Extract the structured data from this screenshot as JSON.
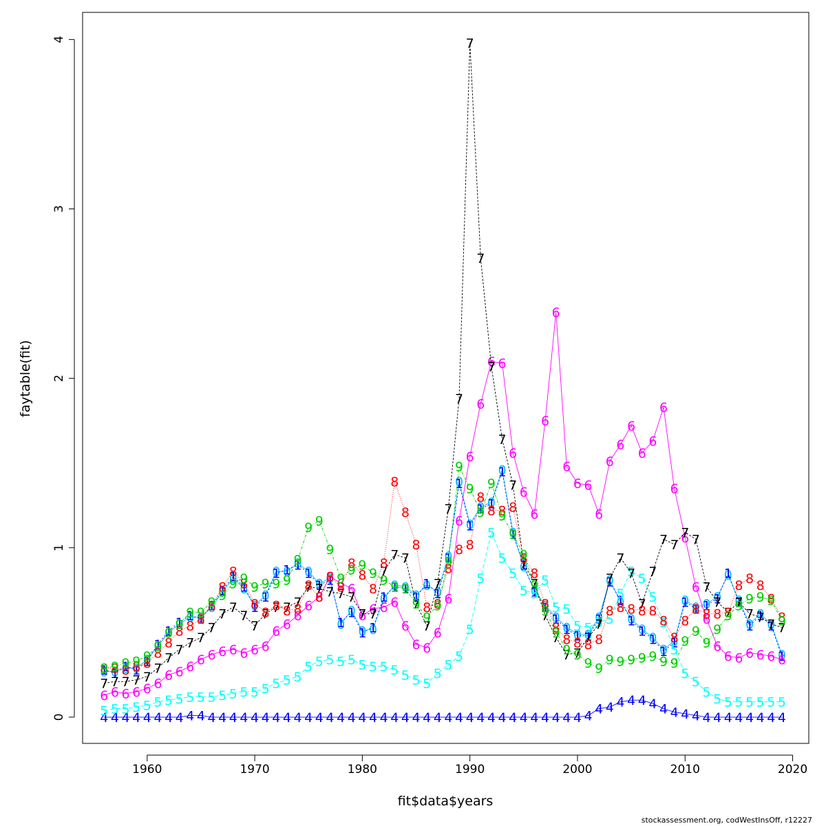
{
  "footer": "stockassessment.org, codWestInsOff, r12227",
  "chart_data": {
    "type": "line",
    "xlabel": "fit$data$years",
    "ylabel": "faytable(fit)",
    "xlim": [
      1954.0,
      2021.5
    ],
    "ylim": [
      -0.155,
      4.16
    ],
    "x_ticks": [
      1960,
      1970,
      1980,
      1990,
      2000,
      2010,
      2020
    ],
    "y_ticks": [
      0,
      1,
      2,
      3,
      4
    ],
    "x_tick_labels": [
      "1960",
      "1970",
      "1980",
      "1990",
      "2000",
      "2010",
      "2020"
    ],
    "y_tick_labels": [
      "0",
      "1",
      "2",
      "3",
      "4"
    ],
    "years": [
      1956,
      1957,
      1958,
      1959,
      1960,
      1961,
      1962,
      1963,
      1964,
      1965,
      1966,
      1967,
      1968,
      1969,
      1970,
      1971,
      1972,
      1973,
      1974,
      1975,
      1976,
      1977,
      1978,
      1979,
      1980,
      1981,
      1982,
      1983,
      1984,
      1985,
      1986,
      1987,
      1988,
      1989,
      1990,
      1991,
      1992,
      1993,
      1994,
      1995,
      1996,
      1997,
      1998,
      1999,
      2000,
      2001,
      2002,
      2003,
      2004,
      2005,
      2006,
      2007,
      2008,
      2009,
      2010,
      2011,
      2012,
      2013,
      2014,
      2015,
      2016,
      2017,
      2018,
      2019
    ],
    "series": [
      {
        "label": "0",
        "color": "#00bfff",
        "values": [
          0.27,
          0.27,
          0.29,
          0.29,
          0.34,
          0.42,
          0.5,
          0.55,
          0.59,
          0.59,
          0.65,
          0.74,
          0.82,
          0.76,
          0.66,
          0.72,
          0.86,
          0.86,
          0.91,
          0.86,
          0.79,
          0.82,
          0.55,
          0.63,
          0.51,
          0.52,
          0.7,
          0.78,
          0.77,
          0.72,
          0.78,
          0.74,
          0.95,
          1.39,
          1.14,
          1.24,
          1.27,
          1.46,
          1.09,
          0.89,
          0.75,
          0.66,
          0.59,
          0.53,
          0.49,
          0.49,
          0.59,
          0.81,
          0.68,
          0.58,
          0.52,
          0.47,
          0.4,
          0.45,
          0.69,
          0.65,
          0.67,
          0.71,
          0.84,
          0.69,
          0.55,
          0.61,
          0.55,
          0.37
        ]
      },
      {
        "label": "1",
        "color": "#0000ff",
        "values": [
          0.28,
          0.26,
          0.3,
          0.28,
          0.33,
          0.43,
          0.51,
          0.56,
          0.6,
          0.58,
          0.66,
          0.75,
          0.83,
          0.77,
          0.65,
          0.71,
          0.85,
          0.87,
          0.9,
          0.85,
          0.78,
          0.81,
          0.56,
          0.62,
          0.5,
          0.53,
          0.71,
          0.77,
          0.76,
          0.71,
          0.79,
          0.73,
          0.94,
          1.38,
          1.13,
          1.23,
          1.26,
          1.45,
          1.08,
          0.9,
          0.74,
          0.65,
          0.58,
          0.52,
          0.48,
          0.48,
          0.58,
          0.8,
          0.69,
          0.57,
          0.51,
          0.46,
          0.39,
          0.44,
          0.68,
          0.64,
          0.66,
          0.7,
          0.85,
          0.68,
          0.54,
          0.6,
          0.54,
          0.36
        ]
      },
      {
        "label": "4",
        "color": "#0000ff",
        "values": [
          0.0,
          0.0,
          0.0,
          0.0,
          0.0,
          0.0,
          0.0,
          0.0,
          0.01,
          0.01,
          0.0,
          0.0,
          0.0,
          0.0,
          0.0,
          0.0,
          0.0,
          0.0,
          0.0,
          0.0,
          0.0,
          0.0,
          0.0,
          0.0,
          0.0,
          0.0,
          0.0,
          0.0,
          0.0,
          0.0,
          0.0,
          0.0,
          0.0,
          0.0,
          0.0,
          0.0,
          0.0,
          0.0,
          0.0,
          0.0,
          0.0,
          0.0,
          0.0,
          0.0,
          0.0,
          0.01,
          0.05,
          0.06,
          0.09,
          0.1,
          0.1,
          0.08,
          0.05,
          0.03,
          0.02,
          0.01,
          0.0,
          0.0,
          0.0,
          0.0,
          0.0,
          0.0,
          0.0,
          0.0
        ]
      },
      {
        "label": "5",
        "color": "#00ffff",
        "values": [
          0.04,
          0.05,
          0.05,
          0.06,
          0.07,
          0.09,
          0.1,
          0.11,
          0.12,
          0.12,
          0.12,
          0.13,
          0.14,
          0.15,
          0.15,
          0.17,
          0.2,
          0.22,
          0.24,
          0.3,
          0.33,
          0.34,
          0.33,
          0.34,
          0.31,
          0.3,
          0.3,
          0.28,
          0.25,
          0.22,
          0.2,
          0.26,
          0.31,
          0.36,
          0.52,
          0.82,
          1.09,
          0.94,
          0.85,
          0.75,
          0.73,
          0.81,
          0.65,
          0.64,
          0.54,
          0.53,
          0.56,
          0.58,
          0.73,
          0.86,
          0.82,
          0.71,
          0.56,
          0.4,
          0.26,
          0.21,
          0.15,
          0.11,
          0.09,
          0.09,
          0.09,
          0.09,
          0.09,
          0.09
        ]
      },
      {
        "label": "6",
        "color": "#ff00ff",
        "values": [
          0.13,
          0.15,
          0.14,
          0.15,
          0.17,
          0.2,
          0.25,
          0.27,
          0.3,
          0.34,
          0.37,
          0.39,
          0.4,
          0.38,
          0.4,
          0.42,
          0.51,
          0.55,
          0.6,
          0.66,
          0.71,
          0.83,
          0.79,
          0.76,
          0.6,
          0.64,
          0.65,
          0.68,
          0.54,
          0.43,
          0.41,
          0.5,
          0.7,
          1.16,
          1.54,
          1.85,
          2.1,
          2.09,
          1.56,
          1.33,
          1.2,
          1.75,
          2.39,
          1.48,
          1.38,
          1.37,
          1.2,
          1.51,
          1.61,
          1.72,
          1.56,
          1.63,
          1.83,
          1.35,
          1.06,
          0.77,
          0.58,
          0.42,
          0.36,
          0.35,
          0.38,
          0.37,
          0.36,
          0.34
        ]
      },
      {
        "label": "7",
        "color": "#000000",
        "values": [
          0.2,
          0.21,
          0.21,
          0.22,
          0.24,
          0.29,
          0.35,
          0.4,
          0.44,
          0.47,
          0.53,
          0.61,
          0.65,
          0.6,
          0.54,
          0.61,
          0.65,
          0.65,
          0.68,
          0.77,
          0.76,
          0.74,
          0.73,
          0.71,
          0.61,
          0.61,
          0.86,
          0.96,
          0.94,
          0.67,
          0.54,
          0.79,
          1.23,
          1.88,
          3.98,
          2.71,
          2.07,
          1.64,
          1.37,
          0.91,
          0.79,
          0.6,
          0.47,
          0.37,
          0.38,
          0.47,
          0.55,
          0.82,
          0.94,
          0.85,
          0.67,
          0.86,
          1.05,
          1.02,
          1.09,
          1.05,
          0.77,
          0.68,
          0.62,
          0.68,
          0.61,
          0.59,
          0.55,
          0.53
        ]
      },
      {
        "label": "8",
        "color": "#ff0000",
        "values": [
          0.29,
          0.29,
          0.28,
          0.3,
          0.32,
          0.38,
          0.44,
          0.51,
          0.54,
          0.58,
          0.66,
          0.77,
          0.86,
          0.79,
          0.67,
          0.62,
          0.66,
          0.63,
          0.64,
          0.78,
          0.71,
          0.83,
          0.77,
          0.91,
          0.84,
          0.76,
          0.91,
          1.39,
          1.21,
          1.02,
          0.65,
          0.67,
          0.88,
          0.99,
          1.02,
          1.3,
          1.22,
          1.22,
          1.24,
          0.94,
          0.85,
          0.67,
          0.53,
          0.46,
          0.44,
          0.43,
          0.46,
          0.63,
          0.65,
          0.64,
          0.63,
          0.63,
          0.57,
          0.47,
          0.57,
          0.64,
          0.61,
          0.61,
          0.62,
          0.78,
          0.82,
          0.78,
          0.7,
          0.59
        ]
      },
      {
        "label": "9",
        "color": "#00cd00",
        "values": [
          0.29,
          0.3,
          0.32,
          0.33,
          0.36,
          0.42,
          0.5,
          0.55,
          0.62,
          0.62,
          0.68,
          0.72,
          0.79,
          0.82,
          0.77,
          0.79,
          0.79,
          0.81,
          0.93,
          1.12,
          1.16,
          0.99,
          0.82,
          0.87,
          0.9,
          0.85,
          0.81,
          0.77,
          0.76,
          0.67,
          0.59,
          0.66,
          0.92,
          1.48,
          1.35,
          1.21,
          1.38,
          1.19,
          1.08,
          0.96,
          0.78,
          0.63,
          0.5,
          0.4,
          0.37,
          0.32,
          0.29,
          0.34,
          0.33,
          0.34,
          0.35,
          0.36,
          0.33,
          0.32,
          0.45,
          0.51,
          0.44,
          0.52,
          0.6,
          0.66,
          0.7,
          0.71,
          0.69,
          0.57
        ]
      }
    ]
  }
}
